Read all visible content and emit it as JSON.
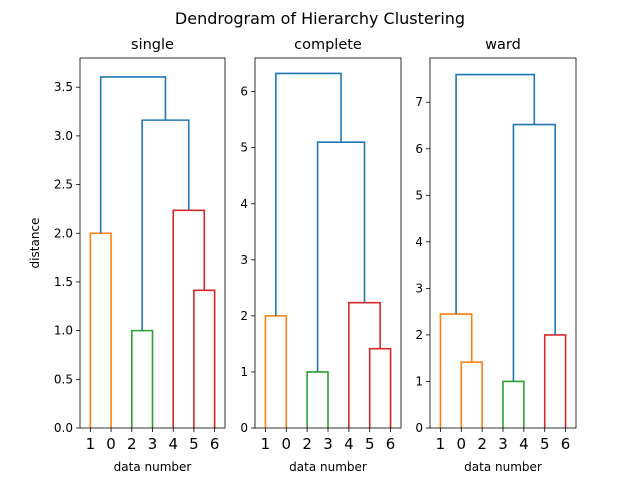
{
  "figure_title": "Dendrogram of Hierarchy Clustering",
  "colors": {
    "C0": "#1f77b4",
    "C1": "#ff7f0e",
    "C2": "#2ca02c",
    "C3": "#d62728"
  },
  "chart_data": [
    {
      "type": "dendrogram",
      "title": "single",
      "xlabel": "data number",
      "ylabel": "distance",
      "leaf_order": [
        "1",
        "0",
        "2",
        "3",
        "4",
        "5",
        "6"
      ],
      "ylim": [
        0,
        3.8
      ],
      "yticks": [
        0.0,
        0.5,
        1.0,
        1.5,
        2.0,
        2.5,
        3.0,
        3.5
      ],
      "ytick_labels": [
        "0.0",
        "0.5",
        "1.0",
        "1.5",
        "2.0",
        "2.5",
        "3.0",
        "3.5"
      ],
      "links": [
        {
          "xs": [
            0,
            0,
            1,
            1
          ],
          "ys": [
            0,
            2.0,
            2.0,
            0
          ],
          "color": "C1"
        },
        {
          "xs": [
            2,
            2,
            3,
            3
          ],
          "ys": [
            0,
            1.0,
            1.0,
            0
          ],
          "color": "C2"
        },
        {
          "xs": [
            5,
            5,
            6,
            6
          ],
          "ys": [
            0,
            1.414,
            1.414,
            0
          ],
          "color": "C3"
        },
        {
          "xs": [
            4,
            4,
            5.5,
            5.5
          ],
          "ys": [
            0,
            2.236,
            2.236,
            1.414
          ],
          "color": "C3"
        },
        {
          "xs": [
            2.5,
            2.5,
            4.75,
            4.75
          ],
          "ys": [
            1.0,
            3.162,
            3.162,
            2.236
          ],
          "color": "C0"
        },
        {
          "xs": [
            0.5,
            0.5,
            3.625,
            3.625
          ],
          "ys": [
            2.0,
            3.606,
            3.606,
            3.162
          ],
          "color": "C0"
        }
      ]
    },
    {
      "type": "dendrogram",
      "title": "complete",
      "xlabel": "data number",
      "ylabel": "",
      "leaf_order": [
        "1",
        "0",
        "2",
        "3",
        "4",
        "5",
        "6"
      ],
      "ylim": [
        0,
        6.6
      ],
      "yticks": [
        0,
        1,
        2,
        3,
        4,
        5,
        6
      ],
      "ytick_labels": [
        "0",
        "1",
        "2",
        "3",
        "4",
        "5",
        "6"
      ],
      "links": [
        {
          "xs": [
            0,
            0,
            1,
            1
          ],
          "ys": [
            0,
            2.0,
            2.0,
            0
          ],
          "color": "C1"
        },
        {
          "xs": [
            2,
            2,
            3,
            3
          ],
          "ys": [
            0,
            1.0,
            1.0,
            0
          ],
          "color": "C2"
        },
        {
          "xs": [
            5,
            5,
            6,
            6
          ],
          "ys": [
            0,
            1.414,
            1.414,
            0
          ],
          "color": "C3"
        },
        {
          "xs": [
            4,
            4,
            5.5,
            5.5
          ],
          "ys": [
            0,
            2.236,
            2.236,
            1.414
          ],
          "color": "C3"
        },
        {
          "xs": [
            2.5,
            2.5,
            4.75,
            4.75
          ],
          "ys": [
            1.0,
            5.099,
            5.099,
            2.236
          ],
          "color": "C0"
        },
        {
          "xs": [
            0.5,
            0.5,
            3.625,
            3.625
          ],
          "ys": [
            2.0,
            6.325,
            6.325,
            5.099
          ],
          "color": "C0"
        }
      ]
    },
    {
      "type": "dendrogram",
      "title": "ward",
      "xlabel": "data number",
      "ylabel": "",
      "leaf_order": [
        "1",
        "0",
        "2",
        "3",
        "4",
        "5",
        "6"
      ],
      "ylim": [
        0,
        7.95
      ],
      "yticks": [
        0,
        1,
        2,
        3,
        4,
        5,
        6,
        7
      ],
      "ytick_labels": [
        "0",
        "1",
        "2",
        "3",
        "4",
        "5",
        "6",
        "7"
      ],
      "links": [
        {
          "xs": [
            1,
            1,
            2,
            2
          ],
          "ys": [
            0,
            1.414,
            1.414,
            0
          ],
          "color": "C1"
        },
        {
          "xs": [
            0,
            0,
            1.5,
            1.5
          ],
          "ys": [
            0,
            2.449,
            2.449,
            1.414
          ],
          "color": "C1"
        },
        {
          "xs": [
            3,
            3,
            4,
            4
          ],
          "ys": [
            0,
            1.0,
            1.0,
            0
          ],
          "color": "C2"
        },
        {
          "xs": [
            5,
            5,
            6,
            6
          ],
          "ys": [
            0,
            2.0,
            2.0,
            0
          ],
          "color": "C3"
        },
        {
          "xs": [
            3.5,
            3.5,
            5.5,
            5.5
          ],
          "ys": [
            1.0,
            6.519,
            6.519,
            2.0
          ],
          "color": "C0"
        },
        {
          "xs": [
            0.75,
            0.75,
            4.5,
            4.5
          ],
          "ys": [
            2.449,
            7.594,
            7.594,
            6.519
          ],
          "color": "C0"
        }
      ]
    }
  ]
}
